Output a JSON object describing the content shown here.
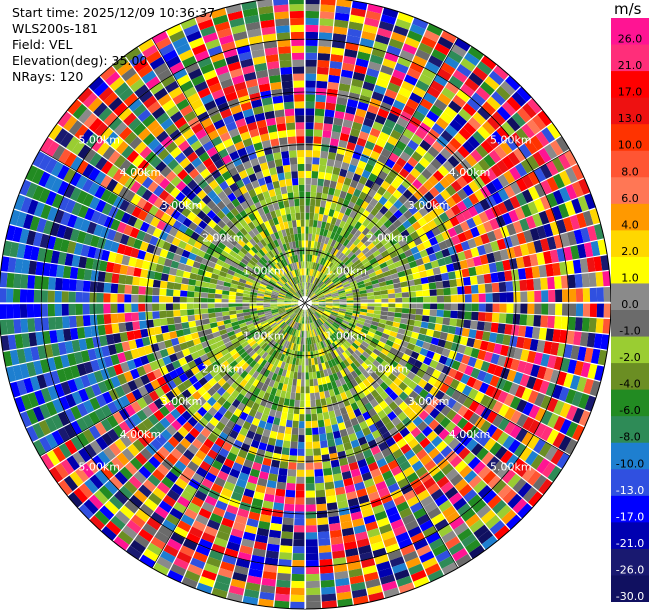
{
  "info": {
    "start_time": "Start time: 2025/12/09 10:36:37",
    "instrument": "WLS200s-181",
    "field": "Field: VEL",
    "elevation": "Elevation(deg): 35.00",
    "nrays": "NRays: 120"
  },
  "plot": {
    "rings": [
      "1.00km",
      "2.00km",
      "3.00km",
      "4.00km",
      "5.00km"
    ],
    "nrays": 120,
    "gates": 44,
    "range_km": 5.8
  },
  "colorbar": {
    "unit": "m/s",
    "labels": [
      "26.0",
      "21.0",
      "17.0",
      "13.0",
      "10.0",
      "8.0",
      "6.0",
      "4.0",
      "2.0",
      "1.0",
      "0.0",
      "-1.0",
      "-2.0",
      "-4.0",
      "-6.0",
      "-8.0",
      "-10.0",
      "-13.0",
      "-17.0",
      "-21.0",
      "-26.0",
      "-30.0"
    ],
    "colors": [
      "#ff1493",
      "#ff2e7a",
      "#ff0000",
      "#ee1111",
      "#ff3300",
      "#ff5533",
      "#ff7755",
      "#ff9900",
      "#ffd700",
      "#ffff00",
      "#8a8a8a",
      "#6b6b6b",
      "#9acd32",
      "#6b8e23",
      "#228b22",
      "#2e8b57",
      "#1e7fd0",
      "#3050e0",
      "#0000ff",
      "#0000b0",
      "#191970",
      "#101060"
    ]
  }
}
